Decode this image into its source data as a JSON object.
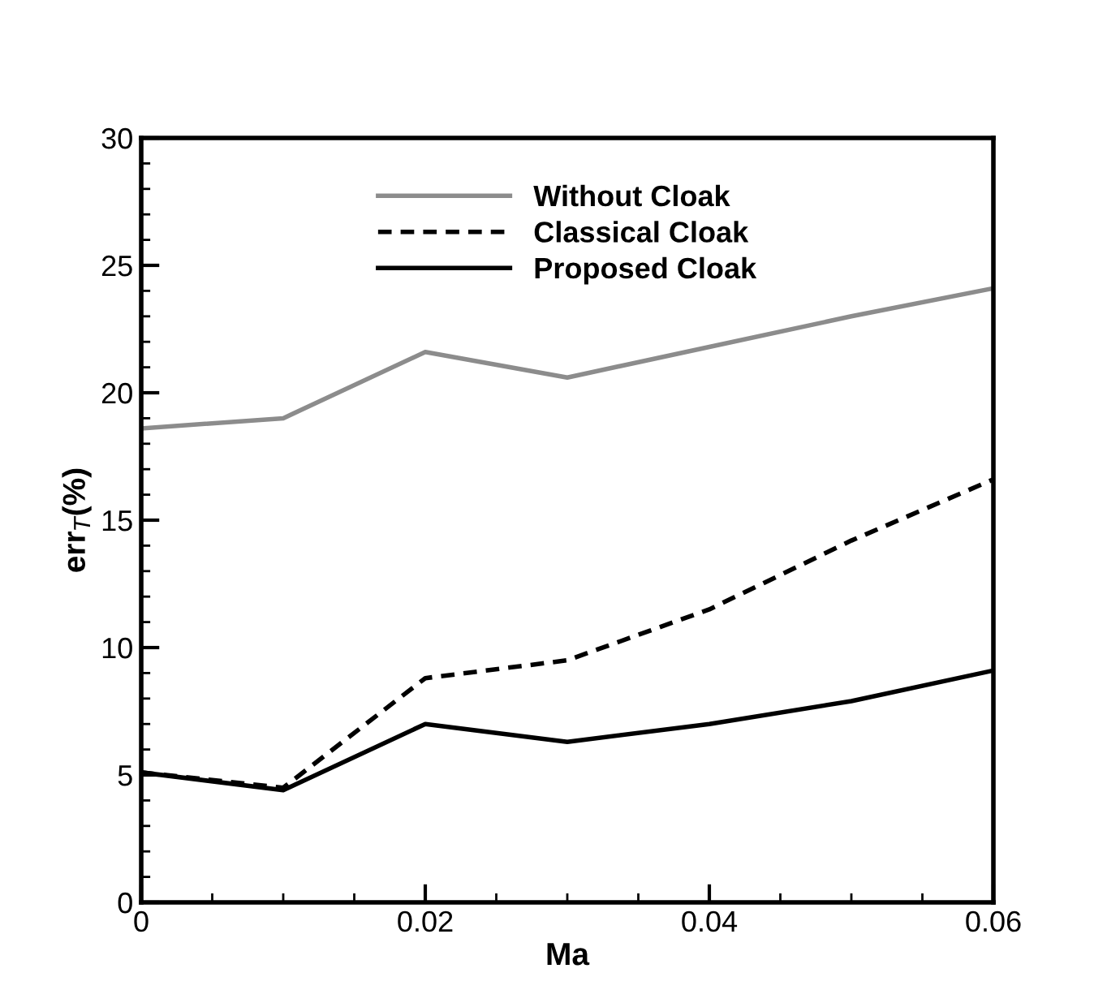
{
  "chart_data": {
    "type": "line",
    "xlabel": "Ma",
    "ylabel": "err$_{T}$(%)",
    "x": [
      0,
      0.01,
      0.02,
      0.03,
      0.04,
      0.05,
      0.06
    ],
    "series": [
      {
        "name": "Without Cloak",
        "color": "#8c8c8c",
        "line_style": "solid",
        "values": [
          18.6,
          19.0,
          21.6,
          20.6,
          21.8,
          23.0,
          24.1
        ]
      },
      {
        "name": "Classical Cloak",
        "color": "#000000",
        "line_style": "dashed",
        "values": [
          5.1,
          4.5,
          8.8,
          9.5,
          11.5,
          14.2,
          16.6
        ]
      },
      {
        "name": "Proposed Cloak",
        "color": "#000000",
        "line_style": "solid",
        "values": [
          5.1,
          4.4,
          7.0,
          6.3,
          7.0,
          7.9,
          9.1
        ]
      }
    ],
    "xlim": [
      0,
      0.06
    ],
    "xticks": [
      0,
      0.02,
      0.04,
      0.06
    ],
    "ylim": [
      0,
      30
    ],
    "yticks": [
      0,
      5,
      10,
      15,
      20,
      25,
      30
    ],
    "grid": false,
    "legend": "top",
    "marker": "none"
  }
}
